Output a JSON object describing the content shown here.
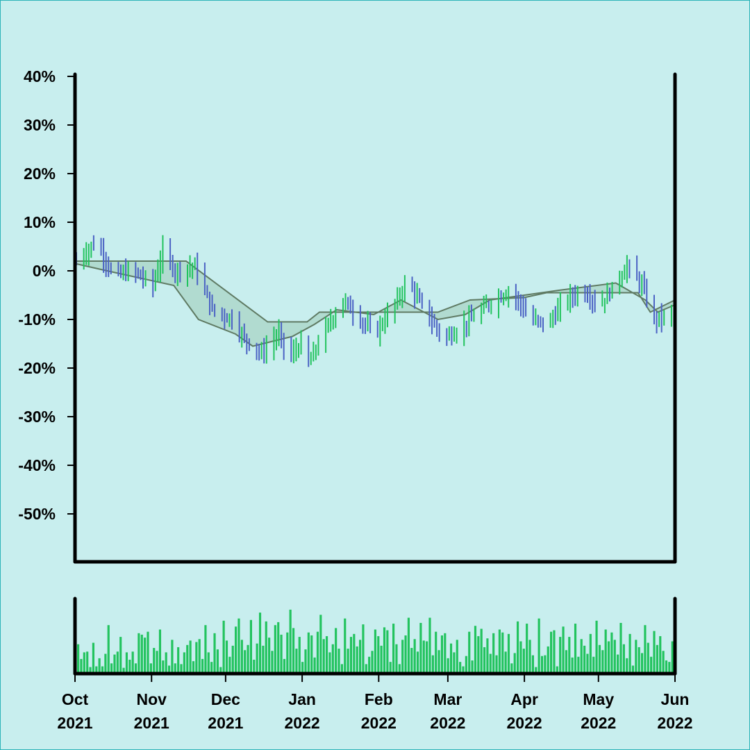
{
  "colors": {
    "background": "#c8eeee",
    "frame": "#2cb3b8",
    "axis": "#000000",
    "up_bar": "#22c35e",
    "down_bar": "#4b62c4",
    "band_line": "#5f7a63",
    "band_fill": "#a9d4c6",
    "volume": "#22c35e"
  },
  "chart_data": {
    "type": "ohlc",
    "title": "",
    "xlabel": "",
    "ylabel": "",
    "ylim": [
      -60,
      40
    ],
    "grid": false,
    "y_ticks": [
      40,
      30,
      20,
      10,
      0,
      -10,
      -20,
      -30,
      -40,
      -50
    ],
    "y_tick_labels": [
      "40%",
      "30%",
      "20%",
      "10%",
      "0%",
      "-10%",
      "-20%",
      "-30%",
      "-40%",
      "-50%"
    ],
    "x_range": [
      "2021-10-01",
      "2022-06-01"
    ],
    "x_ticks": [
      {
        "date": "2021-10-01",
        "month": "Oct",
        "year": "2021"
      },
      {
        "date": "2021-11-01",
        "month": "Nov",
        "year": "2021"
      },
      {
        "date": "2021-12-01",
        "month": "Dec",
        "year": "2021"
      },
      {
        "date": "2022-01-01",
        "month": "Jan",
        "year": "2022"
      },
      {
        "date": "2022-02-01",
        "month": "Feb",
        "year": "2022"
      },
      {
        "date": "2022-03-01",
        "month": "Mar",
        "year": "2022"
      },
      {
        "date": "2022-04-01",
        "month": "Apr",
        "year": "2022"
      },
      {
        "date": "2022-05-01",
        "month": "May",
        "year": "2022"
      },
      {
        "date": "2022-06-01",
        "month": "Jun",
        "year": "2022"
      }
    ],
    "price_path": [
      [
        "2021-10-01",
        2
      ],
      [
        "2021-10-09",
        6
      ],
      [
        "2021-10-16",
        -1
      ],
      [
        "2021-10-24",
        0
      ],
      [
        "2021-11-01",
        -3
      ],
      [
        "2021-11-05",
        4
      ],
      [
        "2021-11-10",
        0
      ],
      [
        "2021-11-18",
        1
      ],
      [
        "2021-11-25",
        -8
      ],
      [
        "2021-12-03",
        -10
      ],
      [
        "2021-12-08",
        -14
      ],
      [
        "2021-12-15",
        -17
      ],
      [
        "2021-12-22",
        -13
      ],
      [
        "2021-12-26",
        -18
      ],
      [
        "2021-12-31",
        -15
      ],
      [
        "2022-01-03",
        -19
      ],
      [
        "2022-01-10",
        -12
      ],
      [
        "2022-01-17",
        -6
      ],
      [
        "2022-01-24",
        -10
      ],
      [
        "2022-01-30",
        -13
      ],
      [
        "2022-02-08",
        -6
      ],
      [
        "2022-02-12",
        -2
      ],
      [
        "2022-02-20",
        -9
      ],
      [
        "2022-02-27",
        -14
      ],
      [
        "2022-03-05",
        -12
      ],
      [
        "2022-03-12",
        -9
      ],
      [
        "2022-03-19",
        -6
      ],
      [
        "2022-03-26",
        -4
      ],
      [
        "2022-04-03",
        -10
      ],
      [
        "2022-04-10",
        -11
      ],
      [
        "2022-04-17",
        -6
      ],
      [
        "2022-04-24",
        -4
      ],
      [
        "2022-05-01",
        -7
      ],
      [
        "2022-05-07",
        -3
      ],
      [
        "2022-05-12",
        1
      ],
      [
        "2022-05-18",
        -3
      ],
      [
        "2022-05-23",
        -10
      ],
      [
        "2022-05-31",
        -9
      ]
    ],
    "band_upper": [
      [
        "2021-10-01",
        2
      ],
      [
        "2021-11-15",
        2
      ],
      [
        "2021-12-18",
        -10.5
      ],
      [
        "2022-01-03",
        -10.5
      ],
      [
        "2022-01-08",
        -8.5
      ],
      [
        "2022-02-25",
        -8.5
      ],
      [
        "2022-03-10",
        -6
      ],
      [
        "2022-04-01",
        -5.5
      ],
      [
        "2022-04-10",
        -4.5
      ],
      [
        "2022-05-17",
        -4.5
      ],
      [
        "2022-05-22",
        -8.5
      ],
      [
        "2022-06-01",
        -6
      ]
    ],
    "band_lower": [
      [
        "2021-10-01",
        1.5
      ],
      [
        "2021-10-14",
        0
      ],
      [
        "2021-11-10",
        -3
      ],
      [
        "2021-11-20",
        -10
      ],
      [
        "2021-12-05",
        -13
      ],
      [
        "2021-12-12",
        -15.5
      ],
      [
        "2021-12-28",
        -13.5
      ],
      [
        "2022-01-06",
        -11
      ],
      [
        "2022-01-15",
        -8
      ],
      [
        "2022-01-30",
        -9
      ],
      [
        "2022-02-10",
        -6
      ],
      [
        "2022-02-25",
        -10
      ],
      [
        "2022-03-08",
        -9
      ],
      [
        "2022-03-18",
        -6
      ],
      [
        "2022-04-01",
        -5
      ],
      [
        "2022-04-15",
        -4
      ],
      [
        "2022-05-08",
        -2.5
      ],
      [
        "2022-05-20",
        -6
      ],
      [
        "2022-05-25",
        -8.5
      ],
      [
        "2022-06-01",
        -7
      ]
    ],
    "volume": {
      "ylim": [
        0,
        100
      ],
      "values": [
        38,
        18,
        27,
        28,
        7,
        40,
        8,
        19,
        8,
        25,
        64,
        12,
        24,
        28,
        48,
        6,
        27,
        17,
        28,
        12,
        53,
        51,
        47,
        55,
        12,
        33,
        29,
        58,
        16,
        27,
        9,
        44,
        12,
        34,
        11,
        27,
        37,
        43,
        15,
        41,
        45,
        18,
        64,
        27,
        14,
        53,
        31,
        7,
        70,
        43,
        21,
        36,
        62,
        73,
        44,
        30,
        37,
        71,
        17,
        39,
        81,
        36,
        69,
        47,
        29,
        64,
        68,
        51,
        18,
        54,
        85,
        60,
        32,
        48,
        14,
        31,
        54,
        50,
        20,
        55,
        78,
        45,
        49,
        27,
        38,
        60,
        32,
        11,
        73,
        32,
        48,
        52,
        35,
        44,
        65,
        11,
        21,
        29,
        58,
        49,
        36,
        61,
        57,
        14,
        66,
        38,
        11,
        44,
        50,
        74,
        33,
        45,
        28,
        67,
        43,
        42,
        74,
        23,
        55,
        30,
        50,
        53,
        19,
        39,
        27,
        44,
        14,
        8,
        22,
        55,
        16,
        63,
        49,
        59,
        34,
        46,
        25,
        53,
        23,
        58,
        54,
        28,
        52,
        12,
        26,
        69,
        42,
        32,
        66,
        44,
        23,
        7,
        73,
        22,
        23,
        35,
        55,
        57,
        8,
        48,
        62,
        30,
        48,
        20,
        66,
        21,
        45,
        36,
        25,
        52,
        21,
        70,
        37,
        30,
        58,
        42,
        54,
        44,
        24,
        67,
        38,
        19,
        52,
        9,
        44,
        34,
        26,
        64,
        40,
        21,
        56,
        37,
        49,
        29,
        16,
        14,
        42
      ]
    }
  }
}
